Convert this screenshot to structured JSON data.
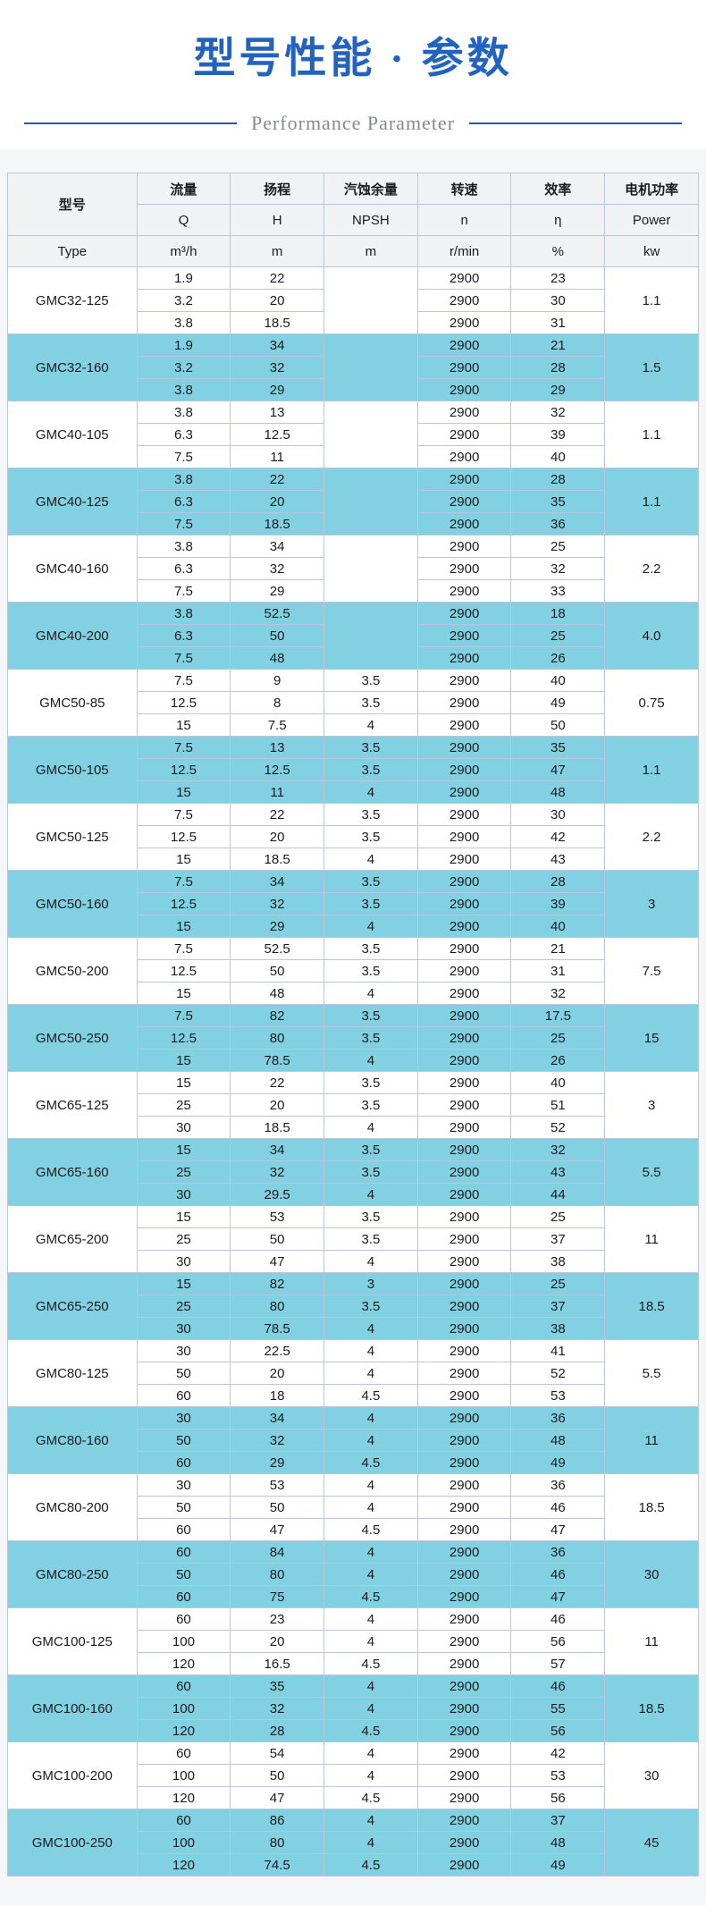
{
  "page": {
    "title": "型号性能 · 参数",
    "subtitle": "Performance Parameter"
  },
  "colors": {
    "title_blue": "#2363c0",
    "subtitle_line_blue": "#2257b8",
    "subtitle_gray": "#84888f",
    "row_highlight_cyan": "#82d1e2",
    "header_gray": "#f1f2f4",
    "table_border": "#b9c6de"
  },
  "table": {
    "header": {
      "model_cn": "型号",
      "model_en": "Type",
      "columns": [
        {
          "cn": "流量",
          "symbol": "Q",
          "unit": "m³/h"
        },
        {
          "cn": "扬程",
          "symbol": "H",
          "unit": "m"
        },
        {
          "cn": "汽蚀余量",
          "symbol": "NPSH",
          "unit": "m"
        },
        {
          "cn": "转速",
          "symbol": "n",
          "unit": "r/min"
        },
        {
          "cn": "效率",
          "symbol": "η",
          "unit": "%"
        },
        {
          "cn": "电机功率",
          "symbol": "Power",
          "unit": "kw"
        }
      ]
    },
    "groups": [
      {
        "model": "GMC32-125",
        "power": "1.1",
        "rows": [
          [
            "1.9",
            "22",
            "",
            "2900",
            "23"
          ],
          [
            "3.2",
            "20",
            "",
            "2900",
            "30"
          ],
          [
            "3.8",
            "18.5",
            "",
            "2900",
            "31"
          ]
        ]
      },
      {
        "model": "GMC32-160",
        "power": "1.5",
        "rows": [
          [
            "1.9",
            "34",
            "",
            "2900",
            "21"
          ],
          [
            "3.2",
            "32",
            "",
            "2900",
            "28"
          ],
          [
            "3.8",
            "29",
            "",
            "2900",
            "29"
          ]
        ]
      },
      {
        "model": "GMC40-105",
        "power": "1.1",
        "rows": [
          [
            "3.8",
            "13",
            "",
            "2900",
            "32"
          ],
          [
            "6.3",
            "12.5",
            "",
            "2900",
            "39"
          ],
          [
            "7.5",
            "11",
            "",
            "2900",
            "40"
          ]
        ]
      },
      {
        "model": "GMC40-125",
        "power": "1.1",
        "rows": [
          [
            "3.8",
            "22",
            "",
            "2900",
            "28"
          ],
          [
            "6.3",
            "20",
            "",
            "2900",
            "35"
          ],
          [
            "7.5",
            "18.5",
            "",
            "2900",
            "36"
          ]
        ]
      },
      {
        "model": "GMC40-160",
        "power": "2.2",
        "rows": [
          [
            "3.8",
            "34",
            "",
            "2900",
            "25"
          ],
          [
            "6.3",
            "32",
            "",
            "2900",
            "32"
          ],
          [
            "7.5",
            "29",
            "",
            "2900",
            "33"
          ]
        ]
      },
      {
        "model": "GMC40-200",
        "power": "4.0",
        "rows": [
          [
            "3.8",
            "52.5",
            "",
            "2900",
            "18"
          ],
          [
            "6.3",
            "50",
            "",
            "2900",
            "25"
          ],
          [
            "7.5",
            "48",
            "",
            "2900",
            "26"
          ]
        ]
      },
      {
        "model": "GMC50-85",
        "power": "0.75",
        "rows": [
          [
            "7.5",
            "9",
            "3.5",
            "2900",
            "40"
          ],
          [
            "12.5",
            "8",
            "3.5",
            "2900",
            "49"
          ],
          [
            "15",
            "7.5",
            "4",
            "2900",
            "50"
          ]
        ]
      },
      {
        "model": "GMC50-105",
        "power": "1.1",
        "rows": [
          [
            "7.5",
            "13",
            "3.5",
            "2900",
            "35"
          ],
          [
            "12.5",
            "12.5",
            "3.5",
            "2900",
            "47"
          ],
          [
            "15",
            "11",
            "4",
            "2900",
            "48"
          ]
        ]
      },
      {
        "model": "GMC50-125",
        "power": "2.2",
        "rows": [
          [
            "7.5",
            "22",
            "3.5",
            "2900",
            "30"
          ],
          [
            "12.5",
            "20",
            "3.5",
            "2900",
            "42"
          ],
          [
            "15",
            "18.5",
            "4",
            "2900",
            "43"
          ]
        ]
      },
      {
        "model": "GMC50-160",
        "power": "3",
        "rows": [
          [
            "7.5",
            "34",
            "3.5",
            "2900",
            "28"
          ],
          [
            "12.5",
            "32",
            "3.5",
            "2900",
            "39"
          ],
          [
            "15",
            "29",
            "4",
            "2900",
            "40"
          ]
        ]
      },
      {
        "model": "GMC50-200",
        "power": "7.5",
        "rows": [
          [
            "7.5",
            "52.5",
            "3.5",
            "2900",
            "21"
          ],
          [
            "12.5",
            "50",
            "3.5",
            "2900",
            "31"
          ],
          [
            "15",
            "48",
            "4",
            "2900",
            "32"
          ]
        ]
      },
      {
        "model": "GMC50-250",
        "power": "15",
        "rows": [
          [
            "7.5",
            "82",
            "3.5",
            "2900",
            "17.5"
          ],
          [
            "12.5",
            "80",
            "3.5",
            "2900",
            "25"
          ],
          [
            "15",
            "78.5",
            "4",
            "2900",
            "26"
          ]
        ]
      },
      {
        "model": "GMC65-125",
        "power": "3",
        "rows": [
          [
            "15",
            "22",
            "3.5",
            "2900",
            "40"
          ],
          [
            "25",
            "20",
            "3.5",
            "2900",
            "51"
          ],
          [
            "30",
            "18.5",
            "4",
            "2900",
            "52"
          ]
        ]
      },
      {
        "model": "GMC65-160",
        "power": "5.5",
        "rows": [
          [
            "15",
            "34",
            "3.5",
            "2900",
            "32"
          ],
          [
            "25",
            "32",
            "3.5",
            "2900",
            "43"
          ],
          [
            "30",
            "29.5",
            "4",
            "2900",
            "44"
          ]
        ]
      },
      {
        "model": "GMC65-200",
        "power": "11",
        "rows": [
          [
            "15",
            "53",
            "3.5",
            "2900",
            "25"
          ],
          [
            "25",
            "50",
            "3.5",
            "2900",
            "37"
          ],
          [
            "30",
            "47",
            "4",
            "2900",
            "38"
          ]
        ]
      },
      {
        "model": "GMC65-250",
        "power": "18.5",
        "rows": [
          [
            "15",
            "82",
            "3",
            "2900",
            "25"
          ],
          [
            "25",
            "80",
            "3.5",
            "2900",
            "37"
          ],
          [
            "30",
            "78.5",
            "4",
            "2900",
            "38"
          ]
        ]
      },
      {
        "model": "GMC80-125",
        "power": "5.5",
        "rows": [
          [
            "30",
            "22.5",
            "4",
            "2900",
            "41"
          ],
          [
            "50",
            "20",
            "4",
            "2900",
            "52"
          ],
          [
            "60",
            "18",
            "4.5",
            "2900",
            "53"
          ]
        ]
      },
      {
        "model": "GMC80-160",
        "power": "11",
        "rows": [
          [
            "30",
            "34",
            "4",
            "2900",
            "36"
          ],
          [
            "50",
            "32",
            "4",
            "2900",
            "48"
          ],
          [
            "60",
            "29",
            "4.5",
            "2900",
            "49"
          ]
        ]
      },
      {
        "model": "GMC80-200",
        "power": "18.5",
        "rows": [
          [
            "30",
            "53",
            "4",
            "2900",
            "36"
          ],
          [
            "50",
            "50",
            "4",
            "2900",
            "46"
          ],
          [
            "60",
            "47",
            "4.5",
            "2900",
            "47"
          ]
        ]
      },
      {
        "model": "GMC80-250",
        "power": "30",
        "rows": [
          [
            "60",
            "84",
            "4",
            "2900",
            "36"
          ],
          [
            "50",
            "80",
            "4",
            "2900",
            "46"
          ],
          [
            "60",
            "75",
            "4.5",
            "2900",
            "47"
          ]
        ]
      },
      {
        "model": "GMC100-125",
        "power": "11",
        "rows": [
          [
            "60",
            "23",
            "4",
            "2900",
            "46"
          ],
          [
            "100",
            "20",
            "4",
            "2900",
            "56"
          ],
          [
            "120",
            "16.5",
            "4.5",
            "2900",
            "57"
          ]
        ]
      },
      {
        "model": "GMC100-160",
        "power": "18.5",
        "rows": [
          [
            "60",
            "35",
            "4",
            "2900",
            "46"
          ],
          [
            "100",
            "32",
            "4",
            "2900",
            "55"
          ],
          [
            "120",
            "28",
            "4.5",
            "2900",
            "56"
          ]
        ]
      },
      {
        "model": "GMC100-200",
        "power": "30",
        "rows": [
          [
            "60",
            "54",
            "4",
            "2900",
            "42"
          ],
          [
            "100",
            "50",
            "4",
            "2900",
            "53"
          ],
          [
            "120",
            "47",
            "4.5",
            "2900",
            "56"
          ]
        ]
      },
      {
        "model": "GMC100-250",
        "power": "45",
        "rows": [
          [
            "60",
            "86",
            "4",
            "2900",
            "37"
          ],
          [
            "100",
            "80",
            "4",
            "2900",
            "48"
          ],
          [
            "120",
            "74.5",
            "4.5",
            "2900",
            "49"
          ]
        ]
      }
    ]
  }
}
